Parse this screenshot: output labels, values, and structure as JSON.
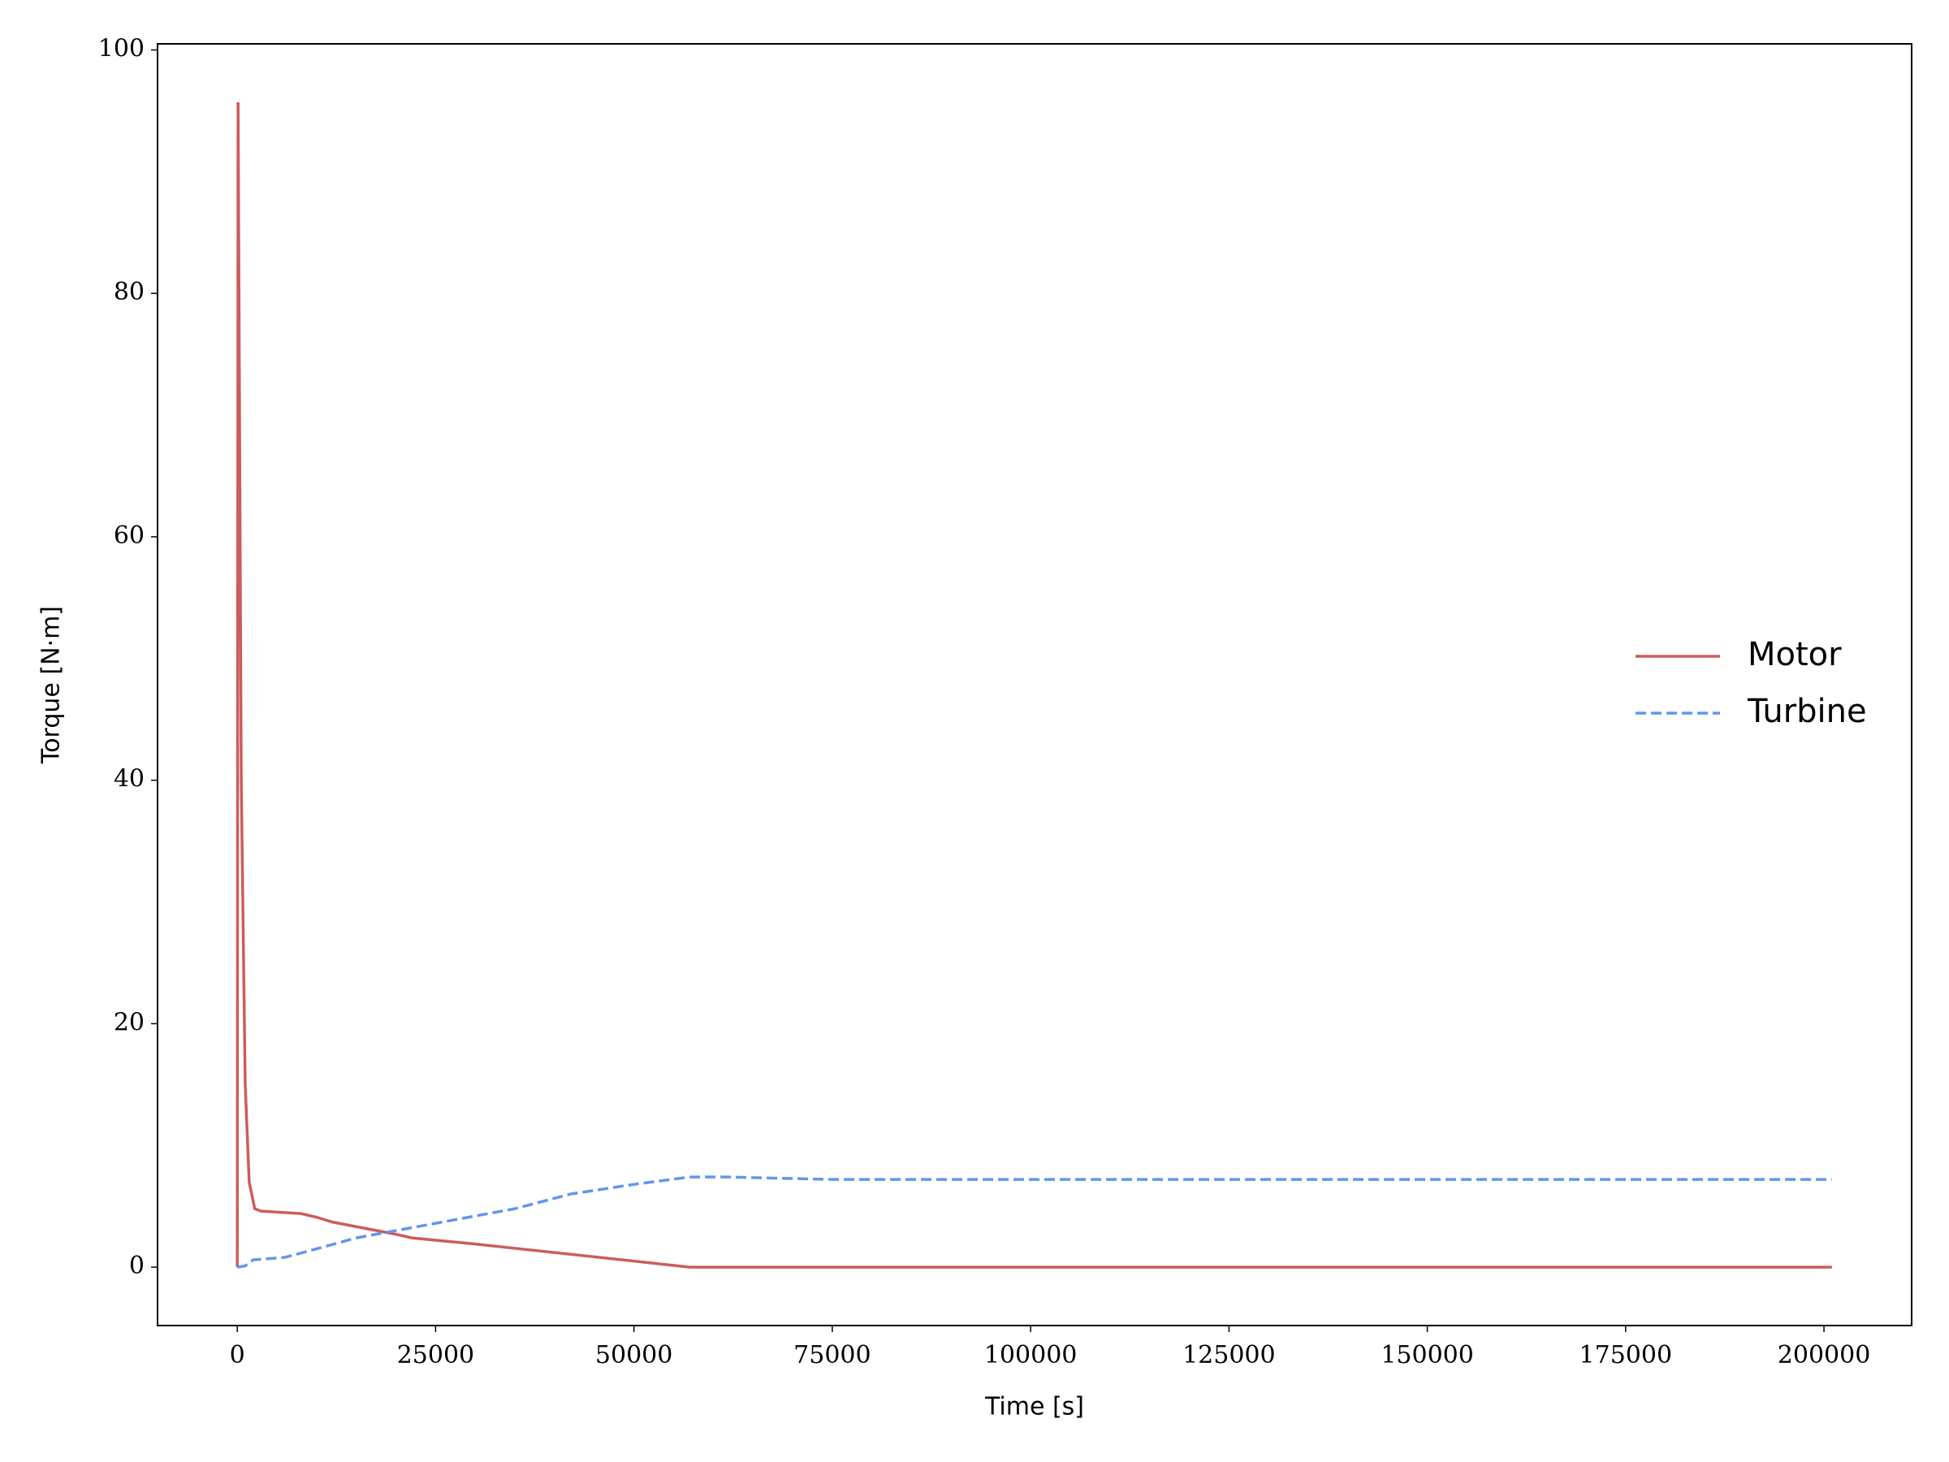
{
  "chart_data": {
    "type": "line",
    "xlabel": "Time [s]",
    "ylabel": "Torque [N·m]",
    "xlim": [
      -10050,
      211050
    ],
    "xticks": [
      0,
      25000,
      50000,
      75000,
      100000,
      125000,
      150000,
      175000,
      200000
    ],
    "ylim": [
      -4.8,
      100.5
    ],
    "yticks": [
      0,
      20,
      40,
      60,
      80,
      100
    ],
    "legend": "center right",
    "series": [
      {
        "name": "Motor",
        "color": "#cd5c5c",
        "dash": "solid",
        "x": [
          0,
          100,
          500,
          1000,
          1500,
          2200,
          3000,
          8000,
          10000,
          12000,
          20000,
          22000,
          30000,
          57000,
          201000
        ],
        "values": [
          0,
          95.7,
          40,
          15,
          7,
          4.8,
          4.6,
          4.4,
          4.1,
          3.7,
          2.7,
          2.4,
          1.9,
          0,
          0
        ]
      },
      {
        "name": "Turbine",
        "color": "#6495ed",
        "dash": "dashed",
        "x": [
          0,
          1000,
          2000,
          6000,
          10000,
          15000,
          25000,
          35000,
          42000,
          50000,
          57000,
          62000,
          75000,
          201000
        ],
        "values": [
          0,
          0.1,
          0.6,
          0.8,
          1.5,
          2.4,
          3.6,
          4.8,
          6.0,
          6.8,
          7.4,
          7.4,
          7.2,
          7.2
        ]
      }
    ]
  }
}
